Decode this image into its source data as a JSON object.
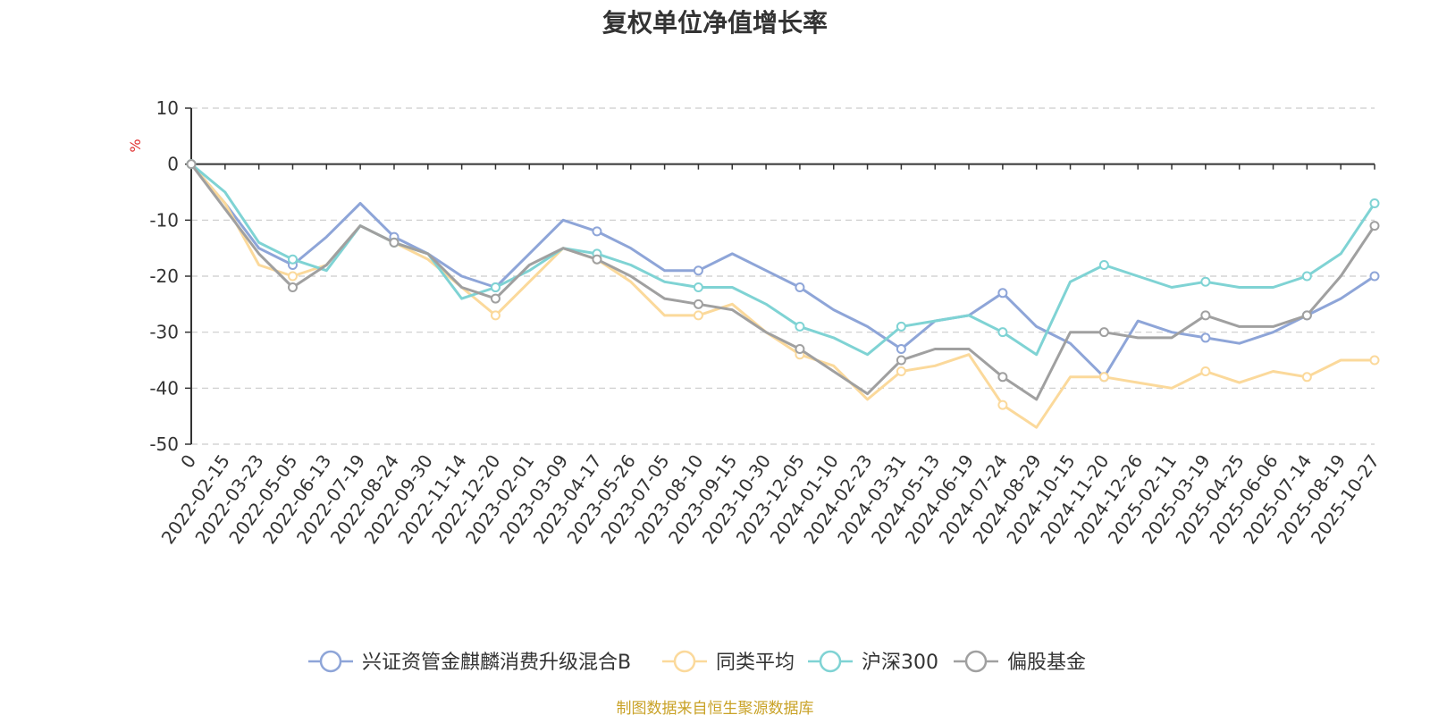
{
  "chart_data": {
    "type": "line",
    "title": "复权单位净值增长率",
    "ylabel": "%",
    "xlabel": "",
    "ylim": [
      -50,
      10
    ],
    "yticks": [
      10,
      0,
      -10,
      -20,
      -30,
      -40,
      -50
    ],
    "grid": true,
    "legend_position": "bottom-center",
    "x": [
      "0",
      "2022-02-15",
      "2022-03-23",
      "2022-05-05",
      "2022-06-13",
      "2022-07-19",
      "2022-08-24",
      "2022-09-30",
      "2022-11-14",
      "2022-12-20",
      "2023-02-01",
      "2023-03-09",
      "2023-04-17",
      "2023-05-26",
      "2023-07-05",
      "2023-08-10",
      "2023-09-15",
      "2023-10-30",
      "2023-12-05",
      "2024-01-10",
      "2024-02-23",
      "2024-03-31",
      "2024-05-13",
      "2024-06-19",
      "2024-07-24",
      "2024-08-29",
      "2024-10-15",
      "2024-11-20",
      "2024-12-26",
      "2025-02-11",
      "2025-03-19",
      "2025-04-25",
      "2025-06-06",
      "2025-07-14",
      "2025-08-19",
      "2025-10-27"
    ],
    "series": [
      {
        "name": "兴证资管金麒麟消费升级混合B",
        "color": "#8ea5d8",
        "values": [
          0,
          -7,
          -15,
          -18,
          -13,
          -7,
          -13,
          -16,
          -20,
          -22,
          -16,
          -10,
          -12,
          -15,
          -19,
          -19,
          -16,
          -19,
          -22,
          -26,
          -29,
          -33,
          -28,
          -27,
          -23,
          -29,
          -32,
          -38,
          -28,
          -30,
          -31,
          -32,
          -30,
          -27,
          -24,
          -20
        ]
      },
      {
        "name": "同类平均",
        "color": "#fbd99b",
        "values": [
          0,
          -7,
          -18,
          -20,
          -18,
          -11,
          -14,
          -17,
          -22,
          -27,
          -21,
          -15,
          -17,
          -21,
          -27,
          -27,
          -25,
          -30,
          -34,
          -36,
          -42,
          -37,
          -36,
          -34,
          -43,
          -47,
          -38,
          -38,
          -39,
          -40,
          -37,
          -39,
          -37,
          -38,
          -35,
          -35
        ]
      },
      {
        "name": "沪深300",
        "color": "#7fd3d4",
        "values": [
          0,
          -5,
          -14,
          -17,
          -19,
          -11,
          -14,
          -16,
          -24,
          -22,
          -19,
          -15,
          -16,
          -18,
          -21,
          -22,
          -22,
          -25,
          -29,
          -31,
          -34,
          -29,
          -28,
          -27,
          -30,
          -34,
          -21,
          -18,
          -20,
          -22,
          -21,
          -22,
          -22,
          -20,
          -16,
          -7
        ]
      },
      {
        "name": "偏股基金",
        "color": "#a0a0a0",
        "values": [
          0,
          -8,
          -16,
          -22,
          -18,
          -11,
          -14,
          -16,
          -22,
          -24,
          -18,
          -15,
          -17,
          -20,
          -24,
          -25,
          -26,
          -30,
          -33,
          -37,
          -41,
          -35,
          -33,
          -33,
          -38,
          -42,
          -30,
          -30,
          -31,
          -31,
          -27,
          -29,
          -29,
          -27,
          -20,
          -11
        ]
      }
    ],
    "source": "制图数据来自恒生聚源数据库"
  }
}
